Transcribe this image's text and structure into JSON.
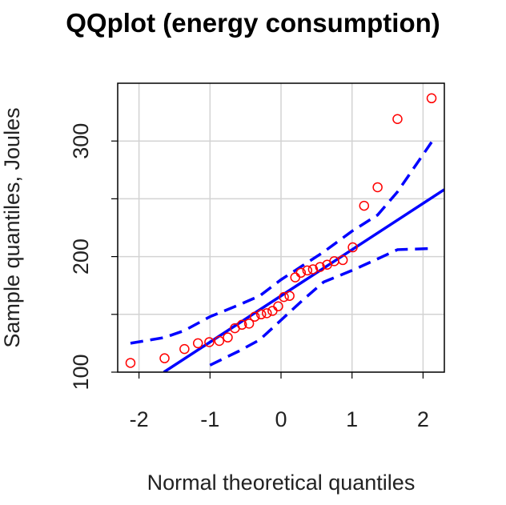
{
  "chart_data": {
    "type": "scatter",
    "title": "QQplot (energy consumption)",
    "xlabel": "Normal theoretical quantiles",
    "ylabel": "Sample quantiles, Joules",
    "xlim": [
      -2.3,
      2.3
    ],
    "ylim": [
      100,
      350
    ],
    "x_ticks": [
      "-2",
      "-1",
      "0",
      "1",
      "2"
    ],
    "y_ticks": [
      "100",
      "200",
      "300"
    ],
    "grid": true,
    "colors": {
      "points": "#ff0000",
      "line": "#0000ff",
      "grid": "#d3d3d3",
      "axes": "#000000"
    },
    "points": [
      {
        "x": -2.12,
        "y": 108
      },
      {
        "x": -1.64,
        "y": 112
      },
      {
        "x": -1.36,
        "y": 120
      },
      {
        "x": -1.17,
        "y": 125
      },
      {
        "x": -1.01,
        "y": 126
      },
      {
        "x": -0.87,
        "y": 127
      },
      {
        "x": -0.75,
        "y": 130
      },
      {
        "x": -0.65,
        "y": 138
      },
      {
        "x": -0.55,
        "y": 141
      },
      {
        "x": -0.45,
        "y": 142
      },
      {
        "x": -0.37,
        "y": 148
      },
      {
        "x": -0.28,
        "y": 150
      },
      {
        "x": -0.2,
        "y": 151
      },
      {
        "x": -0.12,
        "y": 153
      },
      {
        "x": -0.04,
        "y": 157
      },
      {
        "x": 0.04,
        "y": 165
      },
      {
        "x": 0.12,
        "y": 166
      },
      {
        "x": 0.2,
        "y": 182
      },
      {
        "x": 0.28,
        "y": 186
      },
      {
        "x": 0.37,
        "y": 188
      },
      {
        "x": 0.45,
        "y": 189
      },
      {
        "x": 0.55,
        "y": 191
      },
      {
        "x": 0.65,
        "y": 193
      },
      {
        "x": 0.75,
        "y": 196
      },
      {
        "x": 0.87,
        "y": 197
      },
      {
        "x": 1.01,
        "y": 208
      },
      {
        "x": 1.17,
        "y": 244
      },
      {
        "x": 1.36,
        "y": 260
      },
      {
        "x": 1.64,
        "y": 319
      },
      {
        "x": 2.12,
        "y": 337
      }
    ],
    "reference_line": {
      "x": [
        -1.65,
        2.3
      ],
      "y": [
        100,
        258
      ]
    },
    "confidence_upper": {
      "x": [
        -2.12,
        -1.64,
        -1.36,
        -1.0,
        -0.6,
        -0.3,
        0.0,
        0.3,
        0.6,
        1.0,
        1.36,
        1.64,
        2.12
      ],
      "y": [
        125,
        130,
        136,
        148,
        158,
        166,
        180,
        192,
        204,
        222,
        236,
        256,
        299
      ]
    },
    "confidence_lower": {
      "x": [
        -1.0,
        -0.6,
        -0.3,
        0.0,
        0.3,
        0.6,
        1.0,
        1.36,
        1.64,
        2.12
      ],
      "y": [
        106,
        118,
        128,
        145,
        162,
        178,
        188,
        198,
        206,
        207
      ]
    }
  }
}
